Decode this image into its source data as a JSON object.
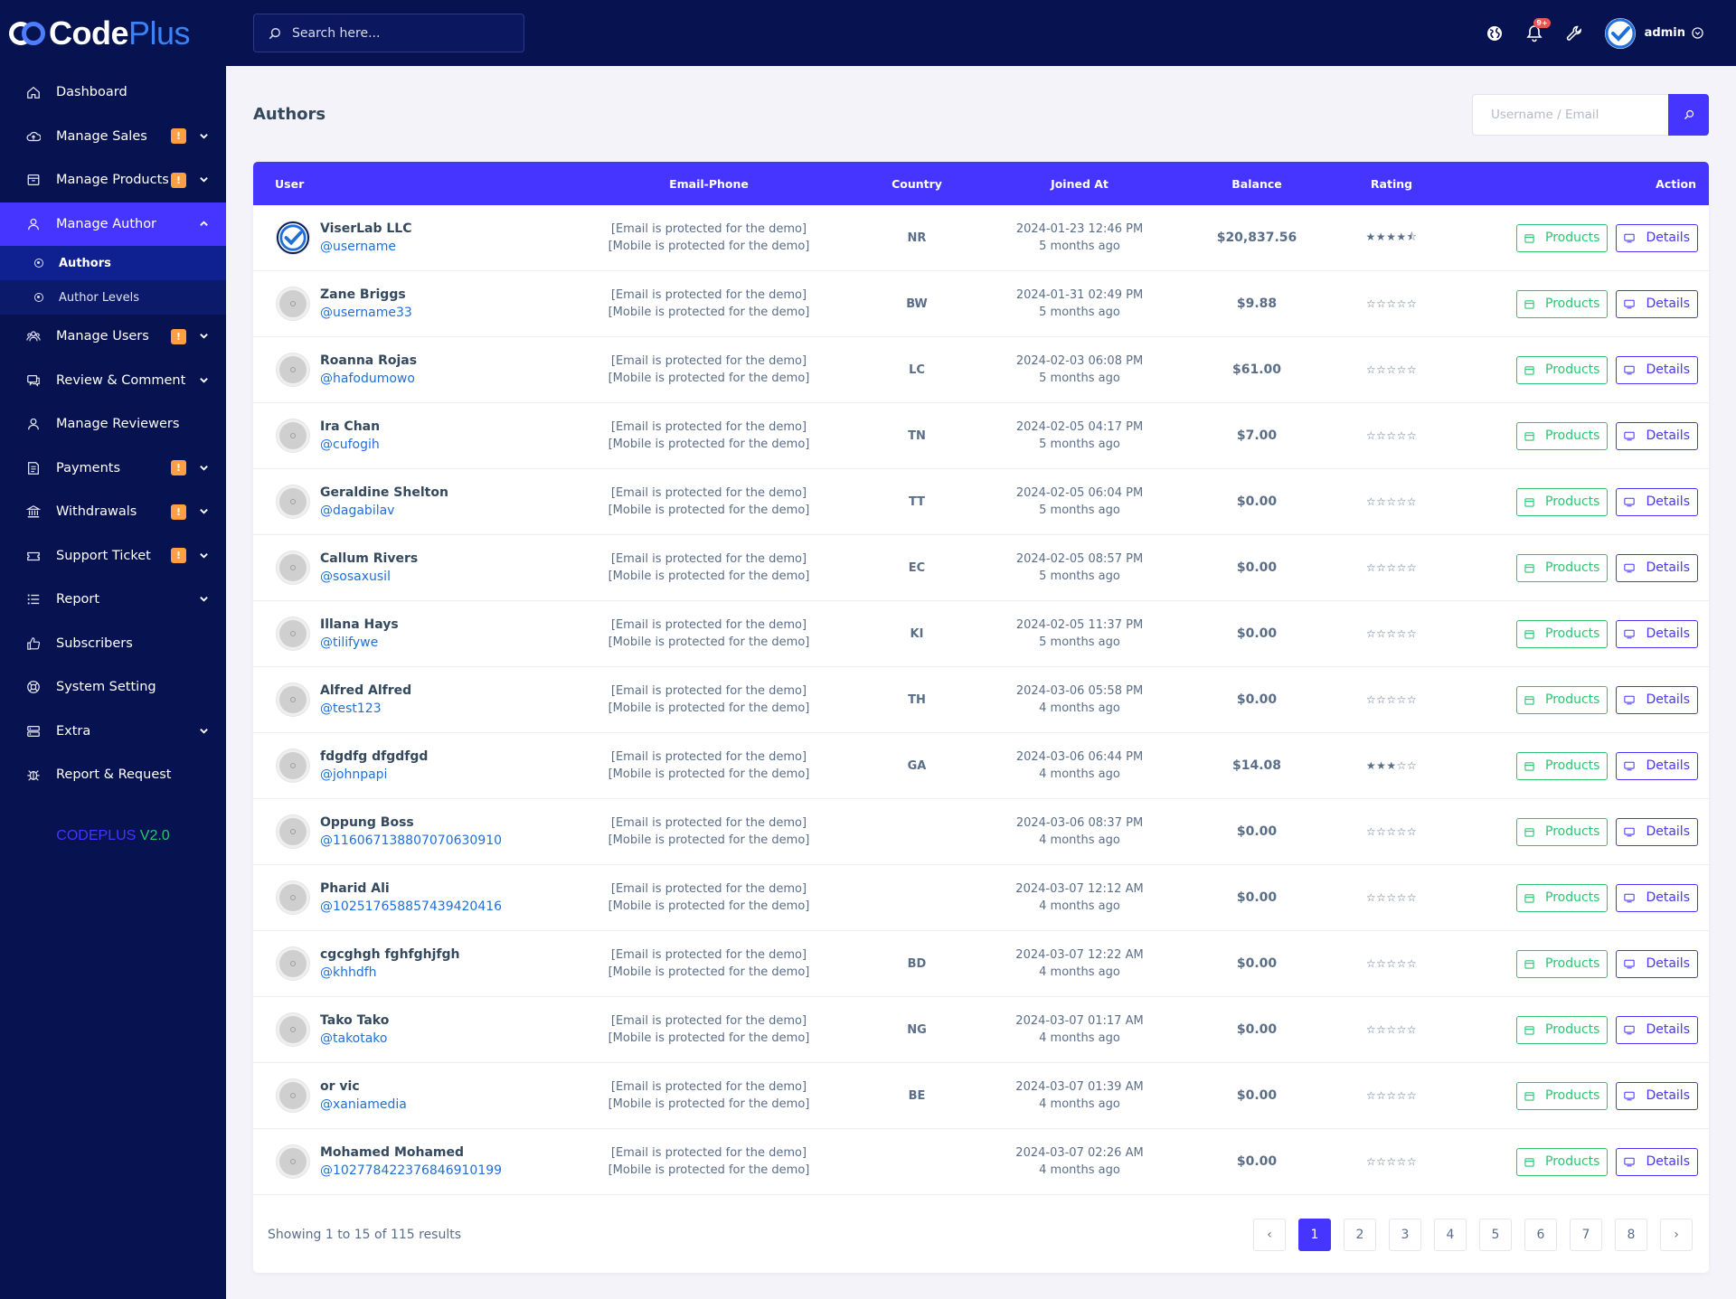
{
  "brand": {
    "code": "Code",
    "plus": "Plus"
  },
  "sidebar": {
    "items": [
      {
        "label": "Dashboard",
        "icon": "home-icon",
        "badge": "",
        "chevron": ""
      },
      {
        "label": "Manage Sales",
        "icon": "cloud-upload-icon",
        "badge": "!",
        "chevron": "down"
      },
      {
        "label": "Manage Products",
        "icon": "box-icon",
        "badge": "!",
        "chevron": "down"
      },
      {
        "label": "Manage Author",
        "icon": "user-icon",
        "badge": "",
        "chevron": "up",
        "active": true
      },
      {
        "label": "Manage Users",
        "icon": "users-icon",
        "badge": "!",
        "chevron": "down"
      },
      {
        "label": "Review & Comment",
        "icon": "comment-icon",
        "badge": "",
        "chevron": "down"
      },
      {
        "label": "Manage Reviewers",
        "icon": "user-icon",
        "badge": "",
        "chevron": ""
      },
      {
        "label": "Payments",
        "icon": "invoice-icon",
        "badge": "!",
        "chevron": "down"
      },
      {
        "label": "Withdrawals",
        "icon": "bank-icon",
        "badge": "!",
        "chevron": "down"
      },
      {
        "label": "Support Ticket",
        "icon": "ticket-icon",
        "badge": "!",
        "chevron": "down"
      },
      {
        "label": "Report",
        "icon": "list-icon",
        "badge": "",
        "chevron": "down"
      },
      {
        "label": "Subscribers",
        "icon": "thumbs-up-icon",
        "badge": "",
        "chevron": ""
      },
      {
        "label": "System Setting",
        "icon": "life-ring-icon",
        "badge": "",
        "chevron": ""
      },
      {
        "label": "Extra",
        "icon": "server-icon",
        "badge": "",
        "chevron": "down"
      },
      {
        "label": "Report & Request",
        "icon": "bug-icon",
        "badge": "",
        "chevron": ""
      }
    ],
    "submenu": [
      {
        "label": "Authors",
        "active": true
      },
      {
        "label": "Author Levels",
        "active": false
      }
    ],
    "version_name": "CODEPLUS",
    "version_num": "V2.0"
  },
  "topbar": {
    "search_placeholder": "Search here...",
    "notif_count": "9+",
    "admin_name": "admin"
  },
  "page": {
    "title": "Authors",
    "filter_placeholder": "Username / Email"
  },
  "table": {
    "headers": {
      "user": "User",
      "email": "Email-Phone",
      "country": "Country",
      "joined": "Joined At",
      "balance": "Balance",
      "rating": "Rating",
      "action": "Action"
    },
    "products_label": "Products",
    "details_label": "Details",
    "rows": [
      {
        "name": "ViserLab LLC",
        "handle": "@username",
        "email": "[Email is protected for the demo]",
        "phone": "[Mobile is protected for the demo]",
        "country": "NR",
        "joined": "2024-01-23 12:46 PM",
        "ago": "5 months ago",
        "balance": "$20,837.56",
        "rating": "★★★★⯪",
        "logo": true
      },
      {
        "name": "Zane Briggs",
        "handle": "@username33",
        "email": "[Email is protected for the demo]",
        "phone": "[Mobile is protected for the demo]",
        "country": "BW",
        "joined": "2024-01-31 02:49 PM",
        "ago": "5 months ago",
        "balance": "$9.88",
        "rating": "☆☆☆☆☆"
      },
      {
        "name": "Roanna Rojas",
        "handle": "@hafodumowo",
        "email": "[Email is protected for the demo]",
        "phone": "[Mobile is protected for the demo]",
        "country": "LC",
        "joined": "2024-02-03 06:08 PM",
        "ago": "5 months ago",
        "balance": "$61.00",
        "rating": "☆☆☆☆☆"
      },
      {
        "name": "Ira Chan",
        "handle": "@cufogih",
        "email": "[Email is protected for the demo]",
        "phone": "[Mobile is protected for the demo]",
        "country": "TN",
        "joined": "2024-02-05 04:17 PM",
        "ago": "5 months ago",
        "balance": "$7.00",
        "rating": "☆☆☆☆☆"
      },
      {
        "name": "Geraldine Shelton",
        "handle": "@dagabilav",
        "email": "[Email is protected for the demo]",
        "phone": "[Mobile is protected for the demo]",
        "country": "TT",
        "joined": "2024-02-05 06:04 PM",
        "ago": "5 months ago",
        "balance": "$0.00",
        "rating": "☆☆☆☆☆"
      },
      {
        "name": "Callum Rivers",
        "handle": "@sosaxusil",
        "email": "[Email is protected for the demo]",
        "phone": "[Mobile is protected for the demo]",
        "country": "EC",
        "joined": "2024-02-05 08:57 PM",
        "ago": "5 months ago",
        "balance": "$0.00",
        "rating": "☆☆☆☆☆"
      },
      {
        "name": "Illana Hays",
        "handle": "@tilifywe",
        "email": "[Email is protected for the demo]",
        "phone": "[Mobile is protected for the demo]",
        "country": "KI",
        "joined": "2024-02-05 11:37 PM",
        "ago": "5 months ago",
        "balance": "$0.00",
        "rating": "☆☆☆☆☆"
      },
      {
        "name": "Alfred Alfred",
        "handle": "@test123",
        "email": "[Email is protected for the demo]",
        "phone": "[Mobile is protected for the demo]",
        "country": "TH",
        "joined": "2024-03-06 05:58 PM",
        "ago": "4 months ago",
        "balance": "$0.00",
        "rating": "☆☆☆☆☆"
      },
      {
        "name": "fdgdfg dfgdfgd",
        "handle": "@johnpapi",
        "email": "[Email is protected for the demo]",
        "phone": "[Mobile is protected for the demo]",
        "country": "GA",
        "joined": "2024-03-06 06:44 PM",
        "ago": "4 months ago",
        "balance": "$14.08",
        "rating": "★★★☆☆"
      },
      {
        "name": "Oppung Boss",
        "handle": "@116067138807070630910",
        "email": "[Email is protected for the demo]",
        "phone": "[Mobile is protected for the demo]",
        "country": "",
        "joined": "2024-03-06 08:37 PM",
        "ago": "4 months ago",
        "balance": "$0.00",
        "rating": "☆☆☆☆☆"
      },
      {
        "name": "Pharid Ali",
        "handle": "@102517658857439420416",
        "email": "[Email is protected for the demo]",
        "phone": "[Mobile is protected for the demo]",
        "country": "",
        "joined": "2024-03-07 12:12 AM",
        "ago": "4 months ago",
        "balance": "$0.00",
        "rating": "☆☆☆☆☆"
      },
      {
        "name": "cgcghgh fghfghjfgh",
        "handle": "@khhdfh",
        "email": "[Email is protected for the demo]",
        "phone": "[Mobile is protected for the demo]",
        "country": "BD",
        "joined": "2024-03-07 12:22 AM",
        "ago": "4 months ago",
        "balance": "$0.00",
        "rating": "☆☆☆☆☆"
      },
      {
        "name": "Tako Tako",
        "handle": "@takotako",
        "email": "[Email is protected for the demo]",
        "phone": "[Mobile is protected for the demo]",
        "country": "NG",
        "joined": "2024-03-07 01:17 AM",
        "ago": "4 months ago",
        "balance": "$0.00",
        "rating": "☆☆☆☆☆"
      },
      {
        "name": "or vic",
        "handle": "@xaniamedia",
        "email": "[Email is protected for the demo]",
        "phone": "[Mobile is protected for the demo]",
        "country": "BE",
        "joined": "2024-03-07 01:39 AM",
        "ago": "4 months ago",
        "balance": "$0.00",
        "rating": "☆☆☆☆☆"
      },
      {
        "name": "Mohamed Mohamed",
        "handle": "@102778422376846910199",
        "email": "[Email is protected for the demo]",
        "phone": "[Mobile is protected for the demo]",
        "country": "",
        "joined": "2024-03-07 02:26 AM",
        "ago": "4 months ago",
        "balance": "$0.00",
        "rating": "☆☆☆☆☆"
      }
    ]
  },
  "pagination": {
    "summary": "Showing 1 to 15 of 115 results",
    "prev": "‹",
    "next": "›",
    "pages": [
      "1",
      "2",
      "3",
      "4",
      "5",
      "6",
      "7",
      "8"
    ],
    "current": "1"
  },
  "colors": {
    "sidebar": "#071251",
    "accent": "#4634ff",
    "success": "#28c76f",
    "warning": "#ff9f43",
    "danger": "#ea5455"
  }
}
